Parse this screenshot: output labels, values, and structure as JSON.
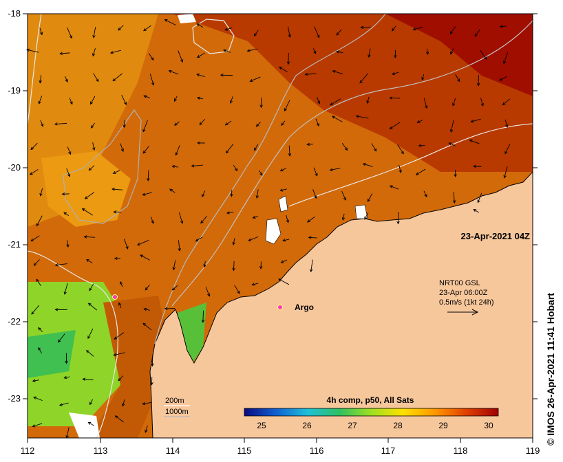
{
  "map": {
    "axes": {
      "lon_ticks": [
        "112",
        "113",
        "114",
        "115",
        "116",
        "117",
        "118",
        "119"
      ],
      "lat_ticks": [
        "-18",
        "-19",
        "-20",
        "-21",
        "-22",
        "-23"
      ]
    },
    "timestamp": "23-Apr-2021 04Z",
    "current_legend": {
      "line1": "NRT00 GSL",
      "line2": "23-Apr 06:00Z",
      "line3": "0.5m/s (1kt 24h)"
    },
    "argo_label": "Argo",
    "bathymetry": {
      "contour_200": "200m",
      "contour_1000": "1000m"
    },
    "colorbar": {
      "title": "4h comp, p50, All Sats",
      "ticks": [
        "25",
        "26",
        "27",
        "28",
        "29",
        "30"
      ],
      "stops": [
        "#0a0a80",
        "#1060d0",
        "#20c0d8",
        "#30c060",
        "#a0e020",
        "#ffe000",
        "#ff9800",
        "#e04000",
        "#a00000"
      ]
    },
    "credit": "© IMOS 26-Apr-2021 11:41 Hobart",
    "colors": {
      "land": "#f7c79c",
      "sst_warm": "#c85a00",
      "sst_hot": "#a00000",
      "sst_cool": "#7ed82a",
      "contour": "#b0b0b0",
      "argo": "#ff33cc"
    }
  }
}
